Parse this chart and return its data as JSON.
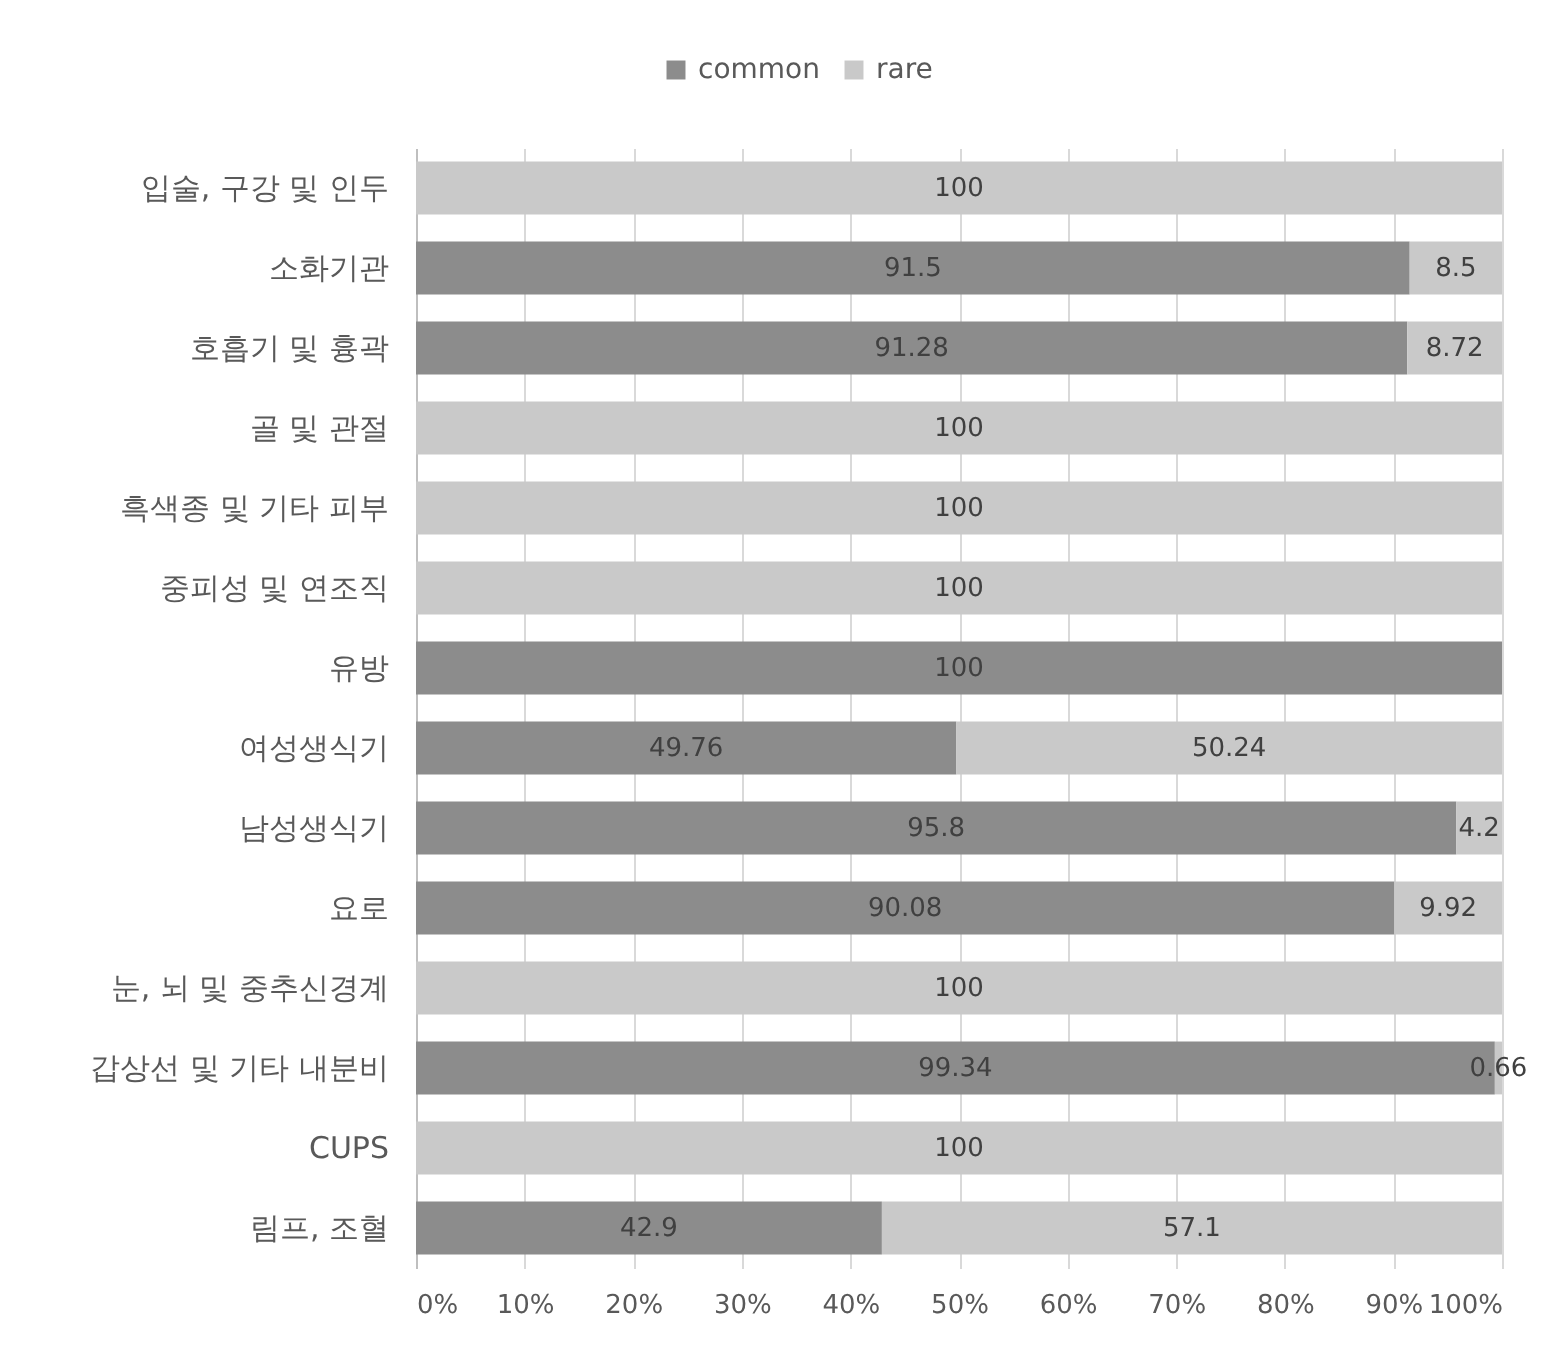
{
  "chart_data": {
    "type": "bar",
    "orientation": "horizontal",
    "stacked": true,
    "categories": [
      "입술, 구강 및 인두",
      "소화기관",
      "호흡기 및 흉곽",
      "골 및 관절",
      "흑색종 및 기타 피부",
      "중피성 및 연조직",
      "유방",
      "여성생식기",
      "남성생식기",
      "요로",
      "눈, 뇌 및 중추신경계",
      "갑상선 및 기타 내분비",
      "CUPS",
      "림프, 조혈"
    ],
    "series": [
      {
        "name": "common",
        "color": "#8c8c8c",
        "values": [
          0,
          91.5,
          91.28,
          0,
          0,
          0,
          100,
          49.76,
          95.8,
          90.08,
          0,
          99.34,
          0,
          42.9
        ],
        "value_labels": [
          null,
          "91.5",
          "91.28",
          null,
          null,
          null,
          "100",
          "49.76",
          "95.8",
          "90.08",
          null,
          "99.34",
          null,
          "42.9"
        ]
      },
      {
        "name": "rare",
        "color": "#c9c9c9",
        "values": [
          100,
          8.5,
          8.72,
          100,
          100,
          100,
          0,
          50.24,
          4.2,
          9.92,
          100,
          0.66,
          100,
          57.1
        ],
        "value_labels": [
          "100",
          "8.5",
          "8.72",
          "100",
          "100",
          "100",
          null,
          "50.24",
          "4.2",
          "9.92",
          "100",
          "0.66",
          "100",
          "57.1"
        ]
      }
    ],
    "xlim": [
      0,
      100
    ],
    "xticks": [
      {
        "value": 0,
        "label": "0%"
      },
      {
        "value": 10,
        "label": "10%"
      },
      {
        "value": 20,
        "label": "20%"
      },
      {
        "value": 30,
        "label": "30%"
      },
      {
        "value": 40,
        "label": "40%"
      },
      {
        "value": 50,
        "label": "50%"
      },
      {
        "value": 60,
        "label": "60%"
      },
      {
        "value": 70,
        "label": "70%"
      },
      {
        "value": 80,
        "label": "80%"
      },
      {
        "value": 90,
        "label": "90%"
      },
      {
        "value": 100,
        "label": "100%"
      }
    ],
    "grid": "x",
    "legend": "top"
  }
}
